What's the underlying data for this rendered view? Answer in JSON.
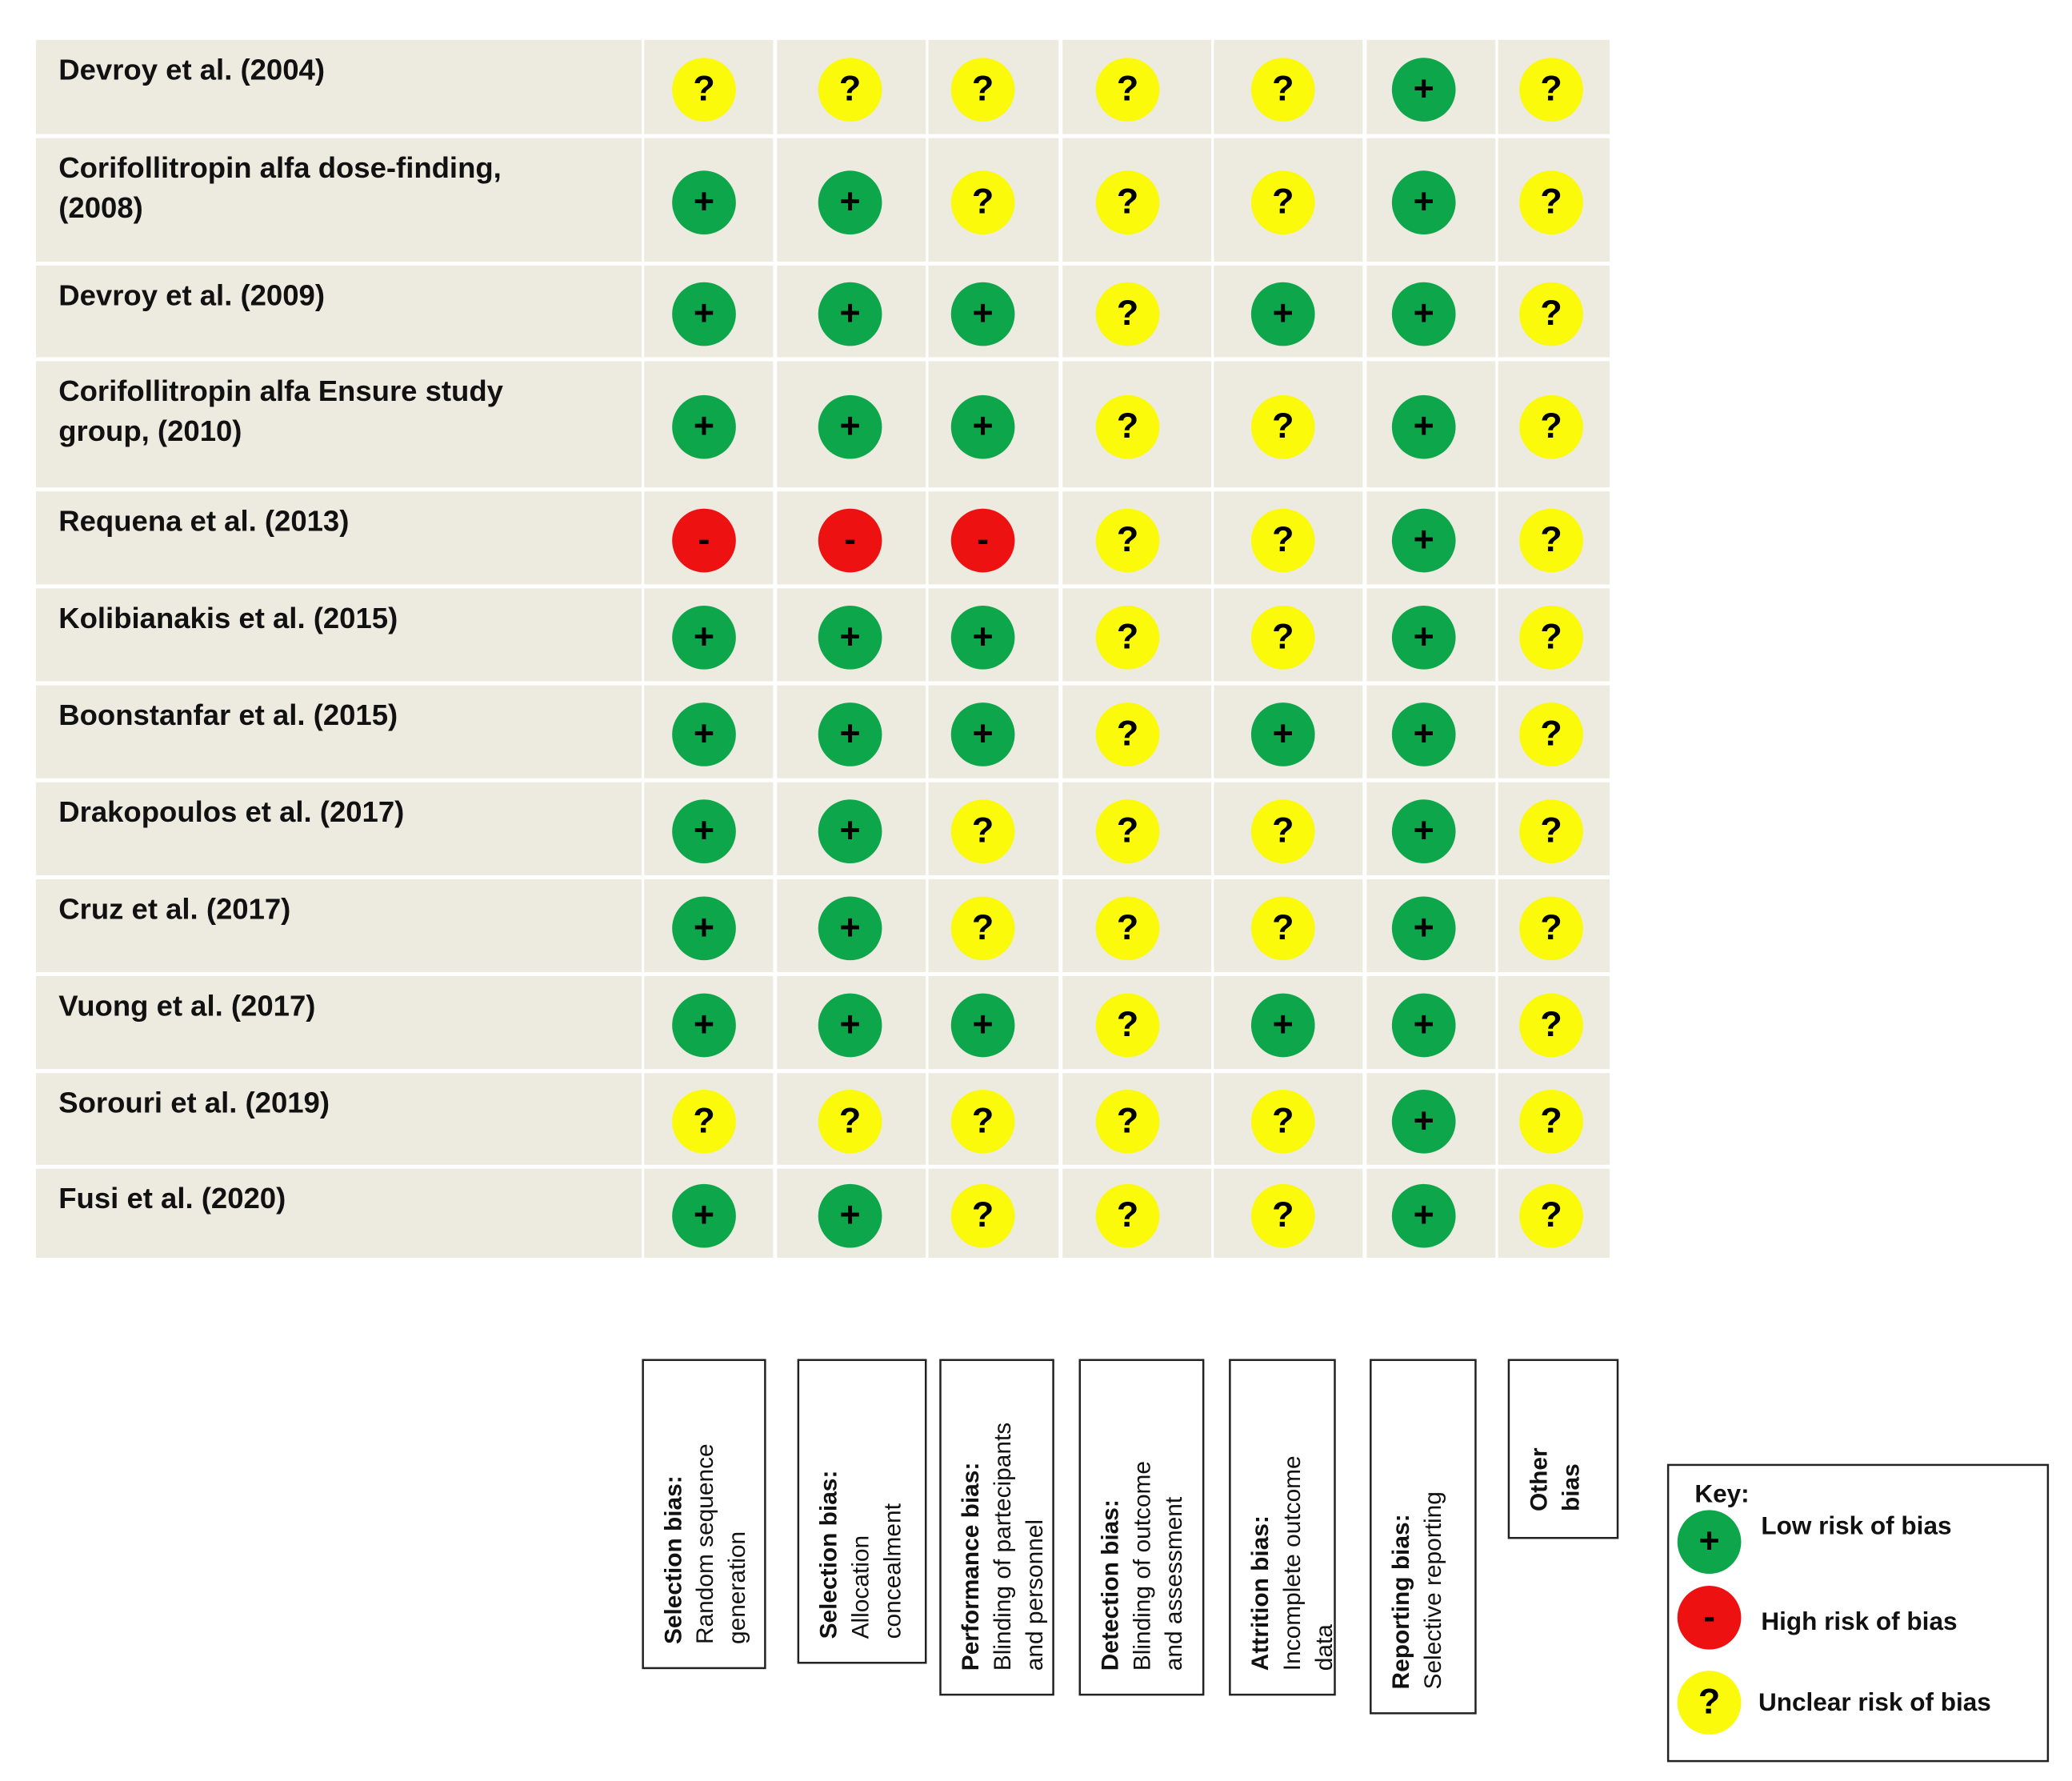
{
  "studies": [
    {
      "name": [
        "Devroy et al. (2004)"
      ],
      "ratings": [
        "?",
        "?",
        "?",
        "?",
        "?",
        "+",
        "?"
      ]
    },
    {
      "name": [
        "Corifollitropin alfa dose-finding,",
        "(2008)"
      ],
      "ratings": [
        "+",
        "+",
        "?",
        "?",
        "?",
        "+",
        "?"
      ]
    },
    {
      "name": [
        "Devroy et al. (2009)"
      ],
      "ratings": [
        "+",
        "+",
        "+",
        "?",
        "+",
        "+",
        "?"
      ]
    },
    {
      "name": [
        "Corifollitropin alfa Ensure study",
        "group, (2010)"
      ],
      "ratings": [
        "+",
        "+",
        "+",
        "?",
        "?",
        "+",
        "?"
      ]
    },
    {
      "name": [
        "Requena et al. (2013)"
      ],
      "ratings": [
        "-",
        "-",
        "-",
        "?",
        "?",
        "+",
        "?"
      ]
    },
    {
      "name": [
        "Kolibianakis et al. (2015)"
      ],
      "ratings": [
        "+",
        "+",
        "+",
        "?",
        "?",
        "+",
        "?"
      ]
    },
    {
      "name": [
        "Boonstanfar et al. (2015)"
      ],
      "ratings": [
        "+",
        "+",
        "+",
        "?",
        "+",
        "+",
        "?"
      ]
    },
    {
      "name": [
        "Drakopoulos et al. (2017)"
      ],
      "ratings": [
        "+",
        "+",
        "?",
        "?",
        "?",
        "+",
        "?"
      ]
    },
    {
      "name": [
        "Cruz et al. (2017)"
      ],
      "ratings": [
        "+",
        "+",
        "?",
        "?",
        "?",
        "+",
        "?"
      ]
    },
    {
      "name": [
        "Vuong et al. (2017)"
      ],
      "ratings": [
        "+",
        "+",
        "+",
        "?",
        "+",
        "+",
        "?"
      ]
    },
    {
      "name": [
        "Sorouri et al. (2019)"
      ],
      "ratings": [
        "?",
        "?",
        "?",
        "?",
        "?",
        "+",
        "?"
      ]
    },
    {
      "name": [
        "Fusi et al. (2020)"
      ],
      "ratings": [
        "+",
        "+",
        "?",
        "?",
        "?",
        "+",
        "?"
      ]
    }
  ],
  "domains": [
    {
      "label": [
        "Selection bias:"
      ],
      "detail": [
        "Random sequence",
        "generation"
      ]
    },
    {
      "label": [
        "Selection bias:"
      ],
      "detail": [
        "Allocation",
        "concealment"
      ]
    },
    {
      "label": [
        "Performance bias:"
      ],
      "detail": [
        "Blinding of partecipants",
        "and personnel"
      ]
    },
    {
      "label": [
        "Detection bias:"
      ],
      "detail": [
        "Blinding of outcome",
        "and assessment"
      ]
    },
    {
      "label": [
        "Attrition bias:"
      ],
      "detail": [
        "Incomplete outcome",
        "data"
      ]
    },
    {
      "label": [
        "Reporting bias:"
      ],
      "detail": [
        "Selective reporting"
      ]
    },
    {
      "label": [
        "Other",
        "bias"
      ],
      "detail": []
    }
  ],
  "key": {
    "title": "Key:",
    "items": [
      {
        "symbol": "+",
        "label": "Low risk of bias",
        "color": "#0ea64a"
      },
      {
        "symbol": "-",
        "label": "High risk of bias",
        "color": "#ee1111"
      },
      {
        "symbol": "?",
        "label": "Unclear risk of bias",
        "color": "#fafa0a"
      }
    ]
  }
}
